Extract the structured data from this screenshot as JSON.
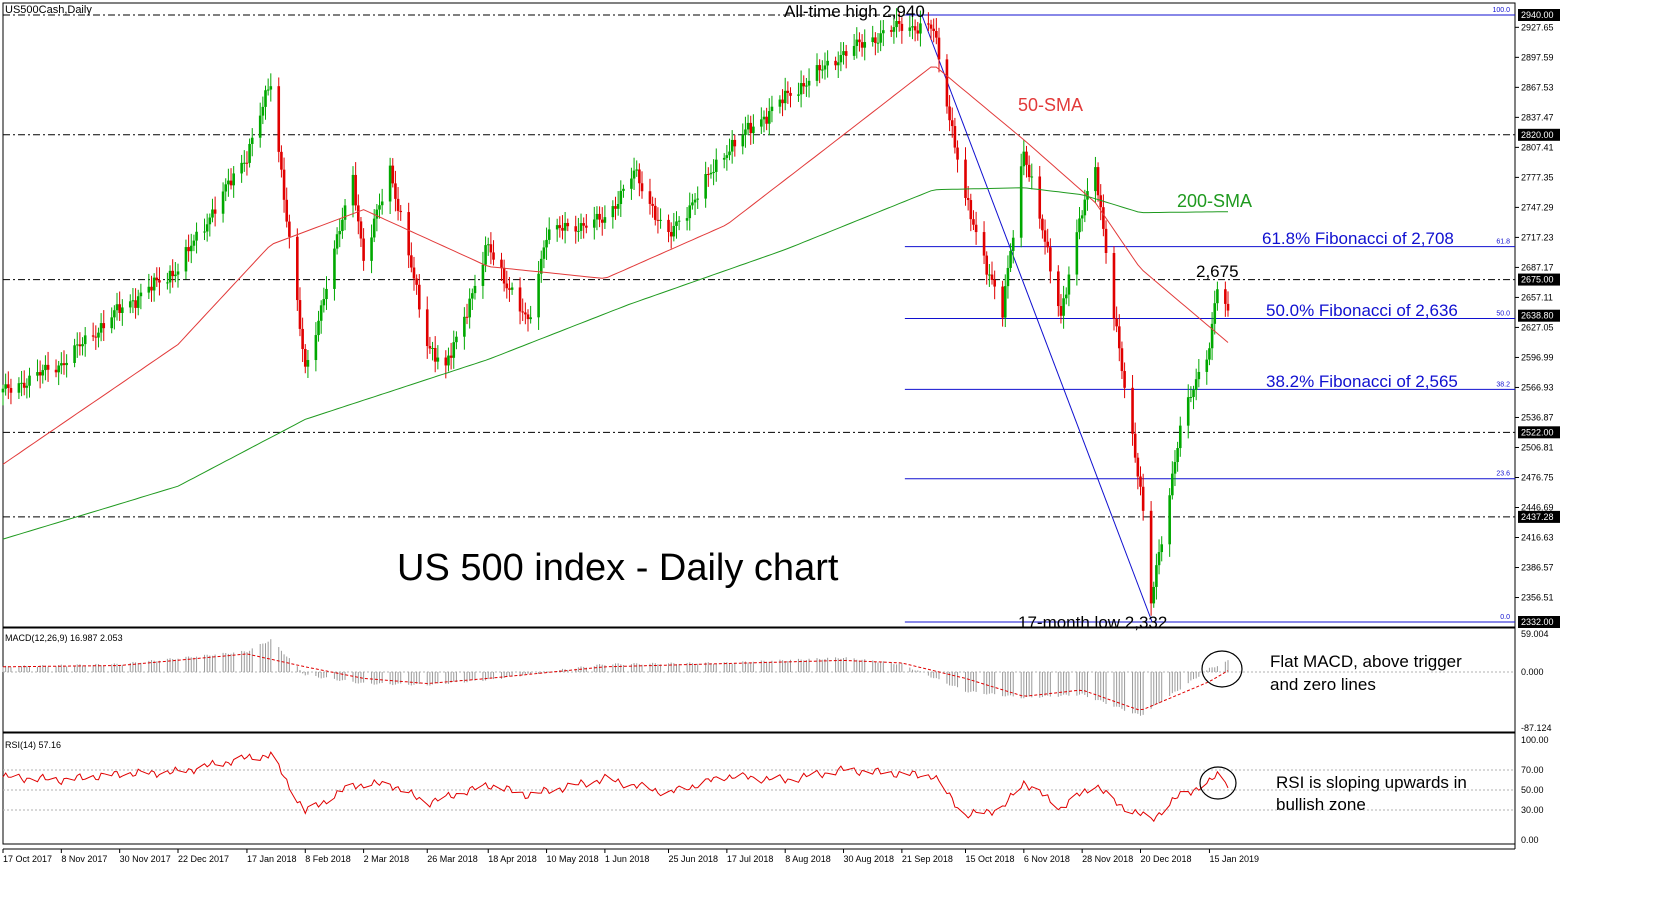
{
  "chart_data": {
    "type": "candlestick",
    "title": "US500Cash,Daily",
    "headline": "US 500 index - Daily chart",
    "colors": {
      "up": "#00a800",
      "down": "#e00000",
      "sma50": "#e23a3a",
      "sma200": "#1f9a1f",
      "fib": "#1010d0",
      "macd_hist": "#9a9a9a",
      "macd_signal": "#e00000",
      "rsi": "#e00000",
      "level_line": "#000000",
      "axis_label_bg": "#000000"
    },
    "x_ticks": [
      "17 Oct 2017",
      "8 Nov 2017",
      "30 Nov 2017",
      "22 Dec 2017",
      "17 Jan 2018",
      "8 Feb 2018",
      "2 Mar 2018",
      "26 Mar 2018",
      "18 Apr 2018",
      "10 May 2018",
      "1 Jun 2018",
      "25 Jun 2018",
      "17 Jul 2018",
      "8 Aug 2018",
      "30 Aug 2018",
      "21 Sep 2018",
      "15 Oct 2018",
      "6 Nov 2018",
      "28 Nov 2018",
      "20 Dec 2018",
      "15 Jan 2019"
    ],
    "price_axis": {
      "ylim": [
        2332.0,
        2940.0
      ],
      "ticks": [
        "2927.65",
        "2897.59",
        "2867.53",
        "2837.47",
        "2807.41",
        "2777.35",
        "2747.29",
        "2717.23",
        "2687.17",
        "2657.11",
        "2627.05",
        "2596.99",
        "2566.93",
        "2536.87",
        "2506.81",
        "2476.75",
        "2446.69",
        "2416.63",
        "2386.57",
        "2356.51"
      ],
      "highlighted": [
        "2940.00",
        "2820.00",
        "2675.00",
        "2638.80",
        "2522.00",
        "2437.28",
        "2332.00"
      ]
    },
    "horizontal_levels": [
      2940,
      2820,
      2675,
      2522,
      2437.28
    ],
    "fibonacci": [
      {
        "pct": "100.0",
        "value": 2940,
        "label": ""
      },
      {
        "pct": "61.8",
        "value": 2708,
        "label": "61.8% Fibonacci of 2,708"
      },
      {
        "pct": "50.0",
        "value": 2636,
        "label": "50.0% Fibonacci of 2,636"
      },
      {
        "pct": "38.2",
        "value": 2565,
        "label": "38.2% Fibonacci of 2,565"
      },
      {
        "pct": "23.6",
        "value": 2475.5,
        "label": ""
      },
      {
        "pct": "0.0",
        "value": 2332,
        "label": ""
      }
    ],
    "annotations": {
      "ath": "All-time high 2,940",
      "low": "17-month low 2,332",
      "recent": "2,675",
      "sma50": "50-SMA",
      "sma200": "200-SMA"
    },
    "price_series": [
      {
        "d": "17 Oct 2017",
        "v": 2562
      },
      {
        "d": "8 Nov 2017",
        "v": 2591
      },
      {
        "d": "30 Nov 2017",
        "v": 2645
      },
      {
        "d": "22 Dec 2017",
        "v": 2686
      },
      {
        "d": "17 Jan 2018",
        "v": 2800
      },
      {
        "d": "26 Jan 2018",
        "v": 2872
      },
      {
        "d": "8 Feb 2018",
        "v": 2582
      },
      {
        "d": "26 Feb 2018",
        "v": 2779
      },
      {
        "d": "2 Mar 2018",
        "v": 2693
      },
      {
        "d": "12 Mar 2018",
        "v": 2786
      },
      {
        "d": "26 Mar 2018",
        "v": 2612
      },
      {
        "d": "2 Apr 2018",
        "v": 2585
      },
      {
        "d": "18 Apr 2018",
        "v": 2708
      },
      {
        "d": "3 May 2018",
        "v": 2630
      },
      {
        "d": "10 May 2018",
        "v": 2722
      },
      {
        "d": "1 Jun 2018",
        "v": 2735
      },
      {
        "d": "12 Jun 2018",
        "v": 2782
      },
      {
        "d": "25 Jun 2018",
        "v": 2717
      },
      {
        "d": "17 Jul 2018",
        "v": 2805
      },
      {
        "d": "8 Aug 2018",
        "v": 2857
      },
      {
        "d": "30 Aug 2018",
        "v": 2902
      },
      {
        "d": "21 Sep 2018",
        "v": 2930
      },
      {
        "d": "3 Oct 2018",
        "v": 2925
      },
      {
        "d": "15 Oct 2018",
        "v": 2754
      },
      {
        "d": "29 Oct 2018",
        "v": 2641
      },
      {
        "d": "6 Nov 2018",
        "v": 2806
      },
      {
        "d": "20 Nov 2018",
        "v": 2641
      },
      {
        "d": "28 Nov 2018",
        "v": 2743
      },
      {
        "d": "3 Dec 2018",
        "v": 2790
      },
      {
        "d": "10 Dec 2018",
        "v": 2637
      },
      {
        "d": "20 Dec 2018",
        "v": 2467
      },
      {
        "d": "24 Dec 2018",
        "v": 2351
      },
      {
        "d": "4 Jan 2019",
        "v": 2527
      },
      {
        "d": "15 Jan 2019",
        "v": 2610
      },
      {
        "d": "18 Jan 2019",
        "v": 2670
      },
      {
        "d": "22 Jan 2019",
        "v": 2638
      }
    ],
    "sma50": [
      {
        "d": "17 Oct 2017",
        "v": 2490
      },
      {
        "d": "22 Dec 2017",
        "v": 2610
      },
      {
        "d": "26 Jan 2018",
        "v": 2710
      },
      {
        "d": "2 Mar 2018",
        "v": 2745
      },
      {
        "d": "18 Apr 2018",
        "v": 2688
      },
      {
        "d": "1 Jun 2018",
        "v": 2676
      },
      {
        "d": "17 Jul 2018",
        "v": 2730
      },
      {
        "d": "30 Aug 2018",
        "v": 2820
      },
      {
        "d": "3 Oct 2018",
        "v": 2890
      },
      {
        "d": "6 Nov 2018",
        "v": 2815
      },
      {
        "d": "3 Dec 2018",
        "v": 2752
      },
      {
        "d": "20 Dec 2018",
        "v": 2686
      },
      {
        "d": "22 Jan 2019",
        "v": 2612
      }
    ],
    "sma200": [
      {
        "d": "17 Oct 2017",
        "v": 2415
      },
      {
        "d": "22 Dec 2017",
        "v": 2468
      },
      {
        "d": "8 Feb 2018",
        "v": 2535
      },
      {
        "d": "18 Apr 2018",
        "v": 2595
      },
      {
        "d": "10 Jun 2018",
        "v": 2650
      },
      {
        "d": "8 Aug 2018",
        "v": 2705
      },
      {
        "d": "3 Oct 2018",
        "v": 2765
      },
      {
        "d": "6 Nov 2018",
        "v": 2767
      },
      {
        "d": "28 Nov 2018",
        "v": 2760
      },
      {
        "d": "20 Dec 2018",
        "v": 2742
      },
      {
        "d": "22 Jan 2019",
        "v": 2743
      }
    ],
    "macd": {
      "label": "MACD(12,26,9) 16.987 2.053",
      "ylim": [
        -87.124,
        59.004
      ],
      "ticks": [
        "59.004",
        "0.000",
        "-87.124"
      ],
      "annotation": [
        "Flat MACD, above trigger",
        "and zero lines"
      ],
      "hist": [
        {
          "d": "17 Oct 2017",
          "v": 8
        },
        {
          "d": "30 Nov 2017",
          "v": 12
        },
        {
          "d": "17 Jan 2018",
          "v": 32
        },
        {
          "d": "26 Jan 2018",
          "v": 50
        },
        {
          "d": "8 Feb 2018",
          "v": -5
        },
        {
          "d": "2 Mar 2018",
          "v": -18
        },
        {
          "d": "26 Mar 2018",
          "v": -20
        },
        {
          "d": "18 Apr 2018",
          "v": -12
        },
        {
          "d": "1 Jun 2018",
          "v": 12
        },
        {
          "d": "17 Jul 2018",
          "v": 14
        },
        {
          "d": "30 Aug 2018",
          "v": 22
        },
        {
          "d": "21 Sep 2018",
          "v": 12
        },
        {
          "d": "15 Oct 2018",
          "v": -30
        },
        {
          "d": "6 Nov 2018",
          "v": -40
        },
        {
          "d": "28 Nov 2018",
          "v": -35
        },
        {
          "d": "20 Dec 2018",
          "v": -68
        },
        {
          "d": "15 Jan 2019",
          "v": 5
        },
        {
          "d": "22 Jan 2019",
          "v": 17
        }
      ],
      "signal": [
        {
          "d": "17 Oct 2017",
          "v": 8
        },
        {
          "d": "30 Nov 2017",
          "v": 10
        },
        {
          "d": "17 Jan 2018",
          "v": 28
        },
        {
          "d": "8 Feb 2018",
          "v": 8
        },
        {
          "d": "2 Mar 2018",
          "v": -10
        },
        {
          "d": "26 Mar 2018",
          "v": -18
        },
        {
          "d": "18 Apr 2018",
          "v": -10
        },
        {
          "d": "1 Jun 2018",
          "v": 8
        },
        {
          "d": "30 Aug 2018",
          "v": 18
        },
        {
          "d": "21 Sep 2018",
          "v": 14
        },
        {
          "d": "15 Oct 2018",
          "v": -10
        },
        {
          "d": "6 Nov 2018",
          "v": -38
        },
        {
          "d": "28 Nov 2018",
          "v": -28
        },
        {
          "d": "20 Dec 2018",
          "v": -60
        },
        {
          "d": "15 Jan 2019",
          "v": -15
        },
        {
          "d": "22 Jan 2019",
          "v": 2
        }
      ]
    },
    "rsi": {
      "label": "RSI(14) 57.16",
      "ylim": [
        0,
        100
      ],
      "ticks": [
        "100.00",
        "70.00",
        "50.00",
        "30.00",
        "0.00"
      ],
      "annotation": [
        "RSI is sloping upwards in",
        "bullish zone"
      ],
      "values": [
        {
          "d": "17 Oct 2017",
          "v": 63
        },
        {
          "d": "8 Nov 2017",
          "v": 60
        },
        {
          "d": "30 Nov 2017",
          "v": 66
        },
        {
          "d": "22 Dec 2017",
          "v": 68
        },
        {
          "d": "17 Jan 2018",
          "v": 82
        },
        {
          "d": "26 Jan 2018",
          "v": 85
        },
        {
          "d": "8 Feb 2018",
          "v": 28
        },
        {
          "d": "26 Feb 2018",
          "v": 55
        },
        {
          "d": "12 Mar 2018",
          "v": 56
        },
        {
          "d": "26 Mar 2018",
          "v": 37
        },
        {
          "d": "18 Apr 2018",
          "v": 55
        },
        {
          "d": "3 May 2018",
          "v": 45
        },
        {
          "d": "1 Jun 2018",
          "v": 61
        },
        {
          "d": "25 Jun 2018",
          "v": 47
        },
        {
          "d": "17 Jul 2018",
          "v": 64
        },
        {
          "d": "8 Aug 2018",
          "v": 60
        },
        {
          "d": "30 Aug 2018",
          "v": 70
        },
        {
          "d": "3 Oct 2018",
          "v": 64
        },
        {
          "d": "15 Oct 2018",
          "v": 24
        },
        {
          "d": "29 Oct 2018",
          "v": 32
        },
        {
          "d": "6 Nov 2018",
          "v": 58
        },
        {
          "d": "20 Nov 2018",
          "v": 32
        },
        {
          "d": "3 Dec 2018",
          "v": 56
        },
        {
          "d": "10 Dec 2018",
          "v": 38
        },
        {
          "d": "24 Dec 2018",
          "v": 20
        },
        {
          "d": "4 Jan 2019",
          "v": 45
        },
        {
          "d": "15 Jan 2019",
          "v": 57
        },
        {
          "d": "18 Jan 2019",
          "v": 66
        },
        {
          "d": "22 Jan 2019",
          "v": 57
        }
      ]
    }
  }
}
